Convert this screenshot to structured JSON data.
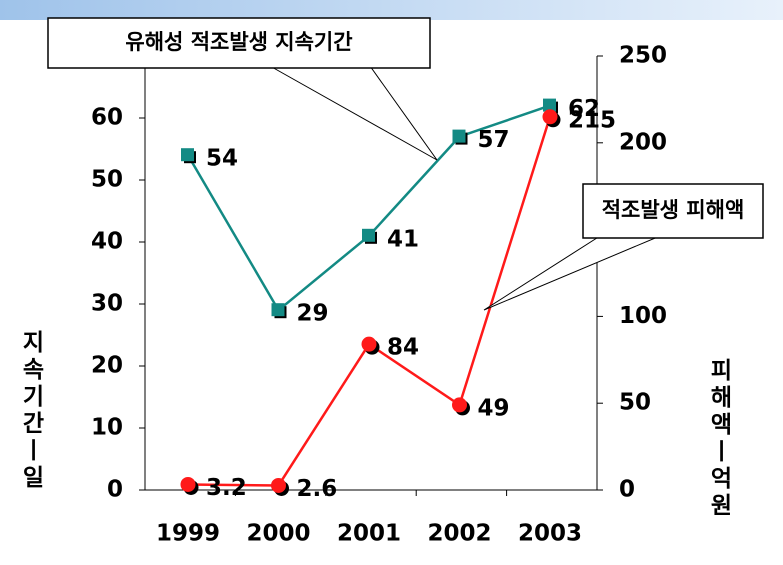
{
  "chart_data": {
    "type": "line",
    "categories": [
      "1999",
      "2000",
      "2001",
      "2002",
      "2003"
    ],
    "series": [
      {
        "name": "유해성 적조발생 지속기간",
        "color": "#138a84",
        "values": [
          54,
          29,
          41,
          57,
          62
        ]
      },
      {
        "name": "적조발생 피해액",
        "color": "#ff1a1a",
        "values": [
          3.2,
          2.6,
          84,
          49,
          215
        ],
        "axis": "y2"
      }
    ],
    "ylim": [
      0,
      70
    ],
    "yticks": [
      0,
      10,
      20,
      30,
      40,
      50,
      60,
      70
    ],
    "y2lim": [
      0,
      250
    ],
    "y2ticks": [
      0,
      50,
      100,
      150,
      200,
      250
    ],
    "ylabel": "지속기간ㅣ일",
    "y2label": "피해액ㅣ억원"
  }
}
